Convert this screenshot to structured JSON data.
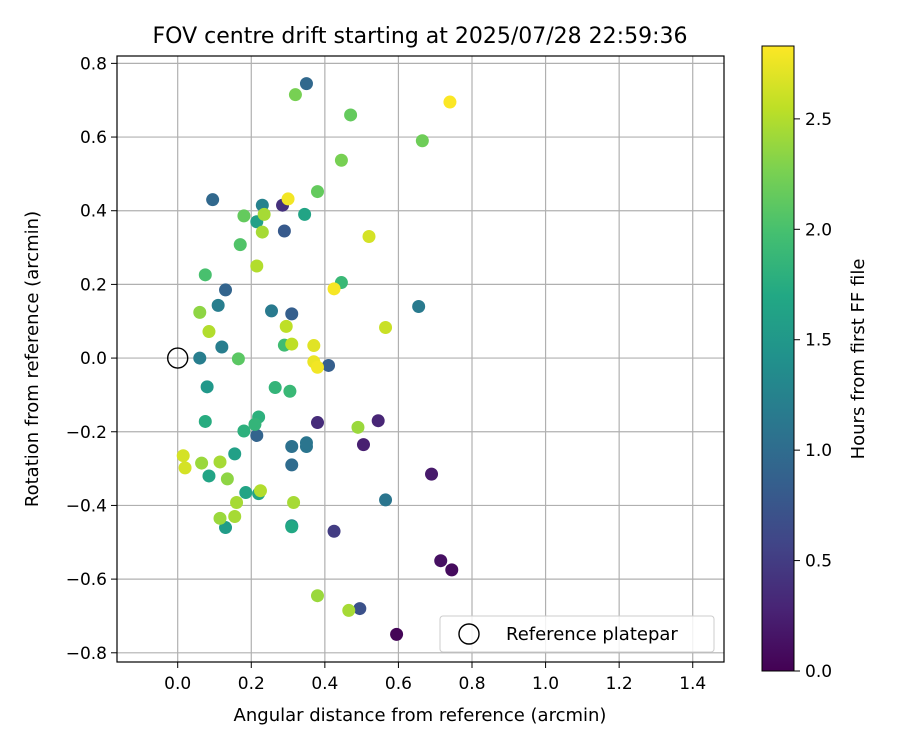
{
  "chart_data": {
    "type": "scatter",
    "title": "FOV centre drift starting at 2025/07/28 22:59:36",
    "xlabel": "Angular distance from reference (arcmin)",
    "ylabel": "Rotation from reference (arcmin)",
    "xlim": [
      -0.165,
      1.485
    ],
    "ylim": [
      -0.825,
      0.82
    ],
    "x_ticks": [
      0.0,
      0.2,
      0.4,
      0.6,
      0.8,
      1.0,
      1.2,
      1.4
    ],
    "x_tick_labels": [
      "0.0",
      "0.2",
      "0.4",
      "0.6",
      "0.8",
      "1.0",
      "1.2",
      "1.4"
    ],
    "y_ticks": [
      -0.8,
      -0.6,
      -0.4,
      -0.2,
      0.0,
      0.2,
      0.4,
      0.6,
      0.8
    ],
    "y_tick_labels": [
      "−0.8",
      "−0.6",
      "−0.4",
      "−0.2",
      "0.0",
      "0.2",
      "0.4",
      "0.6",
      "0.8"
    ],
    "grid": true,
    "colormap": "viridis",
    "colorbar": {
      "label": "Hours from first FF file",
      "range": [
        0.0,
        2.83
      ],
      "ticks": [
        0.0,
        0.5,
        1.0,
        1.5,
        2.0,
        2.5
      ],
      "tick_labels": [
        "0.0",
        "0.5",
        "1.0",
        "1.5",
        "2.0",
        "2.5"
      ]
    },
    "legend": {
      "placement": "lower-right",
      "entries": [
        {
          "label": "Reference platepar",
          "marker": "open-circle"
        }
      ]
    },
    "reference_point": {
      "x": 0.0,
      "y": 0.0,
      "label": "Reference platepar"
    },
    "points": [
      {
        "x": 0.595,
        "y": -0.75,
        "t": 0.03
      },
      {
        "x": 0.745,
        "y": -0.575,
        "t": 0.08
      },
      {
        "x": 0.715,
        "y": -0.55,
        "t": 0.12
      },
      {
        "x": 0.69,
        "y": -0.315,
        "t": 0.2
      },
      {
        "x": 0.505,
        "y": -0.235,
        "t": 0.25
      },
      {
        "x": 0.545,
        "y": -0.17,
        "t": 0.3
      },
      {
        "x": 0.38,
        "y": -0.175,
        "t": 0.35
      },
      {
        "x": 0.285,
        "y": 0.415,
        "t": 0.4
      },
      {
        "x": 0.425,
        "y": -0.47,
        "t": 0.5
      },
      {
        "x": 0.495,
        "y": -0.68,
        "t": 0.7
      },
      {
        "x": 0.41,
        "y": -0.02,
        "t": 0.85
      },
      {
        "x": 0.31,
        "y": 0.12,
        "t": 0.85
      },
      {
        "x": 0.29,
        "y": 0.345,
        "t": 0.8
      },
      {
        "x": 0.13,
        "y": 0.185,
        "t": 0.9
      },
      {
        "x": 0.095,
        "y": 0.43,
        "t": 0.95
      },
      {
        "x": 0.35,
        "y": 0.745,
        "t": 0.95
      },
      {
        "x": 0.215,
        "y": -0.21,
        "t": 0.9
      },
      {
        "x": 0.31,
        "y": -0.29,
        "t": 1.0
      },
      {
        "x": 0.31,
        "y": -0.24,
        "t": 1.05
      },
      {
        "x": 0.35,
        "y": -0.24,
        "t": 1.1
      },
      {
        "x": 0.35,
        "y": -0.23,
        "t": 1.1
      },
      {
        "x": 0.565,
        "y": -0.385,
        "t": 1.1
      },
      {
        "x": 0.655,
        "y": 0.14,
        "t": 1.15
      },
      {
        "x": 0.255,
        "y": 0.128,
        "t": 1.15
      },
      {
        "x": 0.06,
        "y": 0.0,
        "t": 1.2
      },
      {
        "x": 0.12,
        "y": 0.03,
        "t": 1.2
      },
      {
        "x": 0.11,
        "y": 0.143,
        "t": 1.2
      },
      {
        "x": 0.23,
        "y": 0.415,
        "t": 1.25
      },
      {
        "x": 0.31,
        "y": -0.455,
        "t": 1.35
      },
      {
        "x": 0.08,
        "y": -0.078,
        "t": 1.5
      },
      {
        "x": 0.13,
        "y": -0.46,
        "t": 1.55
      },
      {
        "x": 0.155,
        "y": -0.26,
        "t": 1.6
      },
      {
        "x": 0.22,
        "y": -0.368,
        "t": 1.65
      },
      {
        "x": 0.185,
        "y": -0.365,
        "t": 1.65
      },
      {
        "x": 0.085,
        "y": -0.32,
        "t": 1.65
      },
      {
        "x": 0.215,
        "y": 0.37,
        "t": 1.6
      },
      {
        "x": 0.345,
        "y": 0.39,
        "t": 1.65
      },
      {
        "x": 0.31,
        "y": -0.458,
        "t": 1.7
      },
      {
        "x": 0.075,
        "y": -0.172,
        "t": 1.75
      },
      {
        "x": 0.22,
        "y": -0.16,
        "t": 1.8
      },
      {
        "x": 0.18,
        "y": -0.198,
        "t": 1.8
      },
      {
        "x": 0.21,
        "y": -0.18,
        "t": 1.85
      },
      {
        "x": 0.265,
        "y": -0.08,
        "t": 1.85
      },
      {
        "x": 0.305,
        "y": -0.09,
        "t": 1.9
      },
      {
        "x": 0.445,
        "y": 0.205,
        "t": 1.9
      },
      {
        "x": 0.29,
        "y": 0.035,
        "t": 1.95
      },
      {
        "x": 0.075,
        "y": 0.226,
        "t": 2.0
      },
      {
        "x": 0.17,
        "y": 0.308,
        "t": 2.05
      },
      {
        "x": 0.165,
        "y": -0.002,
        "t": 2.1
      },
      {
        "x": 0.18,
        "y": 0.386,
        "t": 2.15
      },
      {
        "x": 0.38,
        "y": 0.452,
        "t": 2.15
      },
      {
        "x": 0.47,
        "y": 0.66,
        "t": 2.15
      },
      {
        "x": 0.665,
        "y": 0.59,
        "t": 2.2
      },
      {
        "x": 0.445,
        "y": 0.537,
        "t": 2.25
      },
      {
        "x": 0.32,
        "y": 0.715,
        "t": 2.25
      },
      {
        "x": 0.06,
        "y": 0.124,
        "t": 2.35
      },
      {
        "x": 0.135,
        "y": -0.328,
        "t": 2.35
      },
      {
        "x": 0.065,
        "y": -0.285,
        "t": 2.4
      },
      {
        "x": 0.115,
        "y": -0.435,
        "t": 2.4
      },
      {
        "x": 0.16,
        "y": -0.392,
        "t": 2.45
      },
      {
        "x": 0.155,
        "y": -0.43,
        "t": 2.45
      },
      {
        "x": 0.315,
        "y": -0.392,
        "t": 2.45
      },
      {
        "x": 0.23,
        "y": 0.342,
        "t": 2.45
      },
      {
        "x": 0.235,
        "y": 0.39,
        "t": 2.45
      },
      {
        "x": 0.215,
        "y": 0.25,
        "t": 2.5
      },
      {
        "x": 0.38,
        "y": -0.645,
        "t": 2.4
      },
      {
        "x": 0.465,
        "y": -0.685,
        "t": 2.45
      },
      {
        "x": 0.49,
        "y": -0.188,
        "t": 2.4
      },
      {
        "x": 0.115,
        "y": -0.282,
        "t": 2.45
      },
      {
        "x": 0.085,
        "y": 0.072,
        "t": 2.5
      },
      {
        "x": 0.225,
        "y": -0.36,
        "t": 2.5
      },
      {
        "x": 0.295,
        "y": 0.086,
        "t": 2.55
      },
      {
        "x": 0.31,
        "y": 0.038,
        "t": 2.55
      },
      {
        "x": 0.565,
        "y": 0.083,
        "t": 2.6
      },
      {
        "x": 0.52,
        "y": 0.33,
        "t": 2.65
      },
      {
        "x": 0.015,
        "y": -0.265,
        "t": 2.65
      },
      {
        "x": 0.02,
        "y": -0.298,
        "t": 2.65
      },
      {
        "x": 0.37,
        "y": 0.034,
        "t": 2.7
      },
      {
        "x": 0.37,
        "y": -0.01,
        "t": 2.75
      },
      {
        "x": 0.38,
        "y": -0.025,
        "t": 2.78
      },
      {
        "x": 0.3,
        "y": 0.432,
        "t": 2.78
      },
      {
        "x": 0.425,
        "y": 0.188,
        "t": 2.8
      },
      {
        "x": 0.74,
        "y": 0.695,
        "t": 2.82
      }
    ]
  }
}
